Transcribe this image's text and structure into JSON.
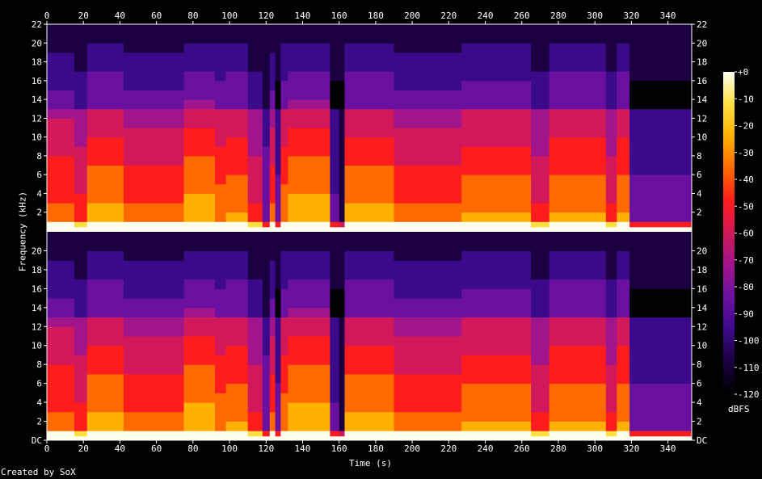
{
  "chart_data": {
    "type": "heatmap",
    "title": "",
    "xlabel": "Time (s)",
    "ylabel": "Frequency (kHz)",
    "credit": "Created by SoX",
    "x_ticks": [
      0,
      20,
      40,
      60,
      80,
      100,
      120,
      140,
      160,
      180,
      200,
      220,
      240,
      260,
      280,
      300,
      320,
      340
    ],
    "xlim": [
      0,
      353
    ],
    "ylim_khz": [
      0,
      22
    ],
    "y_ticks_top": [
      "2",
      "4",
      "6",
      "8",
      "10",
      "12",
      "14",
      "16",
      "18",
      "20",
      "22"
    ],
    "y_ticks_bottom": [
      "DC",
      "2",
      "4",
      "6",
      "8",
      "10",
      "12",
      "14",
      "16",
      "18",
      "20"
    ],
    "y_tick_values": [
      0,
      2,
      4,
      6,
      8,
      10,
      12,
      14,
      16,
      18,
      20,
      22
    ],
    "channels": [
      "channel-1",
      "channel-2"
    ],
    "colorbar": {
      "unit": "dBFS",
      "range": [
        -120,
        0
      ],
      "ticks": [
        "+0",
        "-10",
        "-20",
        "-30",
        "-40",
        "-50",
        "-60",
        "-70",
        "-80",
        "-90",
        "-100",
        "-110",
        "-120"
      ],
      "colors": [
        "#000000",
        "#1a0040",
        "#3b0a8a",
        "#6a10a0",
        "#a0148c",
        "#d0185a",
        "#ff1c1c",
        "#ff6a00",
        "#ffb000",
        "#ffe040",
        "#fffff0"
      ]
    },
    "segments": [
      {
        "t0": 0,
        "t1": 15,
        "level": 0.72
      },
      {
        "t0": 15,
        "t1": 22,
        "level": 0.62
      },
      {
        "t0": 22,
        "t1": 42,
        "level": 0.82
      },
      {
        "t0": 42,
        "t1": 75,
        "level": 0.7
      },
      {
        "t0": 75,
        "t1": 92,
        "level": 0.85
      },
      {
        "t0": 92,
        "t1": 98,
        "level": 0.75
      },
      {
        "t0": 98,
        "t1": 110,
        "level": 0.8
      },
      {
        "t0": 110,
        "t1": 118,
        "level": 0.6
      },
      {
        "t0": 118,
        "t1": 122,
        "level": 0.35
      },
      {
        "t0": 122,
        "t1": 125,
        "level": 0.7
      },
      {
        "t0": 125,
        "t1": 128,
        "level": 0.3
      },
      {
        "t0": 128,
        "t1": 132,
        "level": 0.75
      },
      {
        "t0": 132,
        "t1": 155,
        "level": 0.85
      },
      {
        "t0": 155,
        "t1": 160,
        "level": 0.28
      },
      {
        "t0": 160,
        "t1": 163,
        "level": 0.15
      },
      {
        "t0": 163,
        "t1": 190,
        "level": 0.82
      },
      {
        "t0": 190,
        "t1": 227,
        "level": 0.7
      },
      {
        "t0": 227,
        "t1": 265,
        "level": 0.78
      },
      {
        "t0": 265,
        "t1": 275,
        "level": 0.6
      },
      {
        "t0": 275,
        "t1": 306,
        "level": 0.8
      },
      {
        "t0": 306,
        "t1": 312,
        "level": 0.6
      },
      {
        "t0": 312,
        "t1": 319,
        "level": 0.8
      },
      {
        "t0": 319,
        "t1": 353,
        "level": 0.3
      }
    ]
  }
}
